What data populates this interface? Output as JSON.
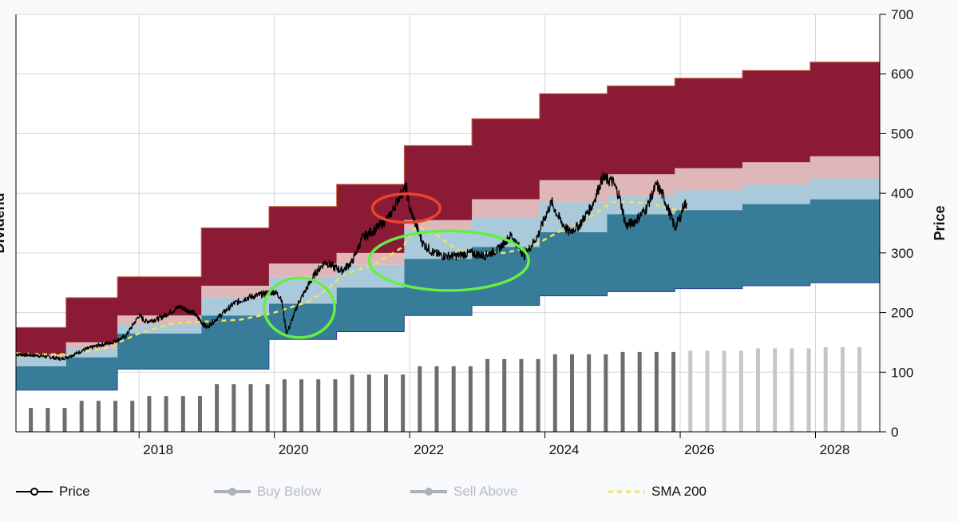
{
  "chart_data": {
    "type": "area",
    "title": "",
    "y_left_label": "Dividend",
    "y_right_label": "Price",
    "y_right_ticks": [
      "0",
      "100",
      "200",
      "300",
      "400",
      "500",
      "600",
      "700"
    ],
    "ylim": [
      0,
      700
    ],
    "x_ticks": [
      "2018",
      "2020",
      "2022",
      "2024",
      "2026",
      "2028"
    ],
    "xlim": [
      2016.18,
      2028.95
    ],
    "grid": true,
    "colors": {
      "overvalued_band": "#8b1a35",
      "sell_zone": "#e0b7b9",
      "fair_value": "#aac9da",
      "undervalued_band": "#377d99",
      "dividend_bar_actual": "#6d6d6d",
      "dividend_bar_projected": "#c6c6c6",
      "price_line": "#000000",
      "sma_line": "#f2e35a",
      "highlight_red": "#e8442f",
      "highlight_green": "#66ee44"
    },
    "bands": {
      "steps": [
        {
          "x0": 2016.18,
          "x1": 2016.92,
          "bottom": 70,
          "under_top": 110,
          "fair_top": 125,
          "sell_top": 130,
          "top": 175
        },
        {
          "x0": 2016.92,
          "x1": 2017.68,
          "bottom": 70,
          "under_top": 125,
          "fair_top": 140,
          "sell_top": 150,
          "top": 225
        },
        {
          "x0": 2017.68,
          "x1": 2018.92,
          "bottom": 105,
          "under_top": 165,
          "fair_top": 180,
          "sell_top": 195,
          "top": 260
        },
        {
          "x0": 2018.92,
          "x1": 2019.92,
          "bottom": 105,
          "under_top": 195,
          "fair_top": 225,
          "sell_top": 245,
          "top": 342
        },
        {
          "x0": 2019.92,
          "x1": 2020.92,
          "bottom": 155,
          "under_top": 215,
          "fair_top": 260,
          "sell_top": 282,
          "top": 378
        },
        {
          "x0": 2020.92,
          "x1": 2021.92,
          "bottom": 168,
          "under_top": 242,
          "fair_top": 280,
          "sell_top": 300,
          "top": 415
        },
        {
          "x0": 2021.92,
          "x1": 2022.92,
          "bottom": 195,
          "under_top": 290,
          "fair_top": 340,
          "sell_top": 355,
          "top": 480
        },
        {
          "x0": 2022.92,
          "x1": 2023.92,
          "bottom": 212,
          "under_top": 310,
          "fair_top": 360,
          "sell_top": 390,
          "top": 525
        },
        {
          "x0": 2023.92,
          "x1": 2024.92,
          "bottom": 228,
          "under_top": 335,
          "fair_top": 385,
          "sell_top": 422,
          "top": 567
        },
        {
          "x0": 2024.92,
          "x1": 2025.92,
          "bottom": 235,
          "under_top": 365,
          "fair_top": 395,
          "sell_top": 432,
          "top": 580
        },
        {
          "x0": 2025.92,
          "x1": 2026.92,
          "bottom": 240,
          "under_top": 372,
          "fair_top": 405,
          "sell_top": 442,
          "top": 593
        },
        {
          "x0": 2026.92,
          "x1": 2027.92,
          "bottom": 245,
          "under_top": 382,
          "fair_top": 415,
          "sell_top": 452,
          "top": 606
        },
        {
          "x0": 2027.92,
          "x1": 2028.95,
          "bottom": 250,
          "under_top": 390,
          "fair_top": 425,
          "sell_top": 462,
          "top": 620
        }
      ]
    },
    "dividend_bars": {
      "actual": [
        {
          "x": 2016.4,
          "v": 40
        },
        {
          "x": 2016.65,
          "v": 40
        },
        {
          "x": 2016.9,
          "v": 40
        },
        {
          "x": 2017.15,
          "v": 52
        },
        {
          "x": 2017.4,
          "v": 52
        },
        {
          "x": 2017.65,
          "v": 52
        },
        {
          "x": 2017.9,
          "v": 52
        },
        {
          "x": 2018.15,
          "v": 60
        },
        {
          "x": 2018.4,
          "v": 60
        },
        {
          "x": 2018.65,
          "v": 60
        },
        {
          "x": 2018.9,
          "v": 60
        },
        {
          "x": 2019.15,
          "v": 80
        },
        {
          "x": 2019.4,
          "v": 80
        },
        {
          "x": 2019.65,
          "v": 80
        },
        {
          "x": 2019.9,
          "v": 80
        },
        {
          "x": 2020.15,
          "v": 88
        },
        {
          "x": 2020.4,
          "v": 88
        },
        {
          "x": 2020.65,
          "v": 88
        },
        {
          "x": 2020.9,
          "v": 88
        },
        {
          "x": 2021.15,
          "v": 96
        },
        {
          "x": 2021.4,
          "v": 96
        },
        {
          "x": 2021.65,
          "v": 96
        },
        {
          "x": 2021.9,
          "v": 96
        },
        {
          "x": 2022.15,
          "v": 110
        },
        {
          "x": 2022.4,
          "v": 110
        },
        {
          "x": 2022.65,
          "v": 110
        },
        {
          "x": 2022.9,
          "v": 110
        },
        {
          "x": 2023.15,
          "v": 122
        },
        {
          "x": 2023.4,
          "v": 122
        },
        {
          "x": 2023.65,
          "v": 122
        },
        {
          "x": 2023.9,
          "v": 122
        },
        {
          "x": 2024.15,
          "v": 130
        },
        {
          "x": 2024.4,
          "v": 130
        },
        {
          "x": 2024.65,
          "v": 130
        },
        {
          "x": 2024.9,
          "v": 130
        },
        {
          "x": 2025.15,
          "v": 134
        },
        {
          "x": 2025.4,
          "v": 134
        },
        {
          "x": 2025.65,
          "v": 134
        },
        {
          "x": 2025.9,
          "v": 134
        }
      ],
      "projected": [
        {
          "x": 2026.15,
          "v": 136
        },
        {
          "x": 2026.4,
          "v": 136
        },
        {
          "x": 2026.65,
          "v": 136
        },
        {
          "x": 2026.9,
          "v": 136
        },
        {
          "x": 2027.15,
          "v": 140
        },
        {
          "x": 2027.4,
          "v": 140
        },
        {
          "x": 2027.65,
          "v": 140
        },
        {
          "x": 2027.9,
          "v": 140
        },
        {
          "x": 2028.15,
          "v": 142
        },
        {
          "x": 2028.4,
          "v": 142
        },
        {
          "x": 2028.65,
          "v": 142
        }
      ]
    },
    "series": [
      {
        "name": "Price",
        "points": [
          [
            2016.18,
            130
          ],
          [
            2016.5,
            128
          ],
          [
            2016.7,
            125
          ],
          [
            2016.85,
            122
          ],
          [
            2017.0,
            128
          ],
          [
            2017.2,
            138
          ],
          [
            2017.4,
            145
          ],
          [
            2017.6,
            150
          ],
          [
            2017.8,
            160
          ],
          [
            2018.0,
            195
          ],
          [
            2018.1,
            185
          ],
          [
            2018.3,
            190
          ],
          [
            2018.6,
            210
          ],
          [
            2018.8,
            200
          ],
          [
            2019.0,
            175
          ],
          [
            2019.2,
            195
          ],
          [
            2019.4,
            215
          ],
          [
            2019.6,
            225
          ],
          [
            2019.8,
            230
          ],
          [
            2020.0,
            235
          ],
          [
            2020.1,
            225
          ],
          [
            2020.18,
            165
          ],
          [
            2020.22,
            175
          ],
          [
            2020.35,
            215
          ],
          [
            2020.5,
            245
          ],
          [
            2020.6,
            265
          ],
          [
            2020.75,
            285
          ],
          [
            2020.9,
            275
          ],
          [
            2021.0,
            270
          ],
          [
            2021.15,
            285
          ],
          [
            2021.3,
            325
          ],
          [
            2021.5,
            340
          ],
          [
            2021.7,
            360
          ],
          [
            2021.85,
            395
          ],
          [
            2021.95,
            410
          ],
          [
            2022.0,
            375
          ],
          [
            2022.1,
            345
          ],
          [
            2022.2,
            315
          ],
          [
            2022.35,
            300
          ],
          [
            2022.5,
            295
          ],
          [
            2022.7,
            295
          ],
          [
            2022.9,
            300
          ],
          [
            2023.1,
            295
          ],
          [
            2023.3,
            305
          ],
          [
            2023.5,
            330
          ],
          [
            2023.7,
            295
          ],
          [
            2023.9,
            330
          ],
          [
            2024.0,
            360
          ],
          [
            2024.1,
            385
          ],
          [
            2024.2,
            360
          ],
          [
            2024.35,
            335
          ],
          [
            2024.5,
            345
          ],
          [
            2024.7,
            380
          ],
          [
            2024.85,
            425
          ],
          [
            2025.0,
            420
          ],
          [
            2025.1,
            395
          ],
          [
            2025.2,
            345
          ],
          [
            2025.35,
            355
          ],
          [
            2025.5,
            375
          ],
          [
            2025.65,
            415
          ],
          [
            2025.75,
            395
          ],
          [
            2025.85,
            365
          ],
          [
            2025.92,
            342
          ],
          [
            2026.0,
            360
          ],
          [
            2026.05,
            380
          ],
          [
            2026.1,
            383
          ]
        ]
      },
      {
        "name": "SMA 200",
        "points": [
          [
            2016.18,
            132
          ],
          [
            2016.6,
            130
          ],
          [
            2017.0,
            130
          ],
          [
            2017.5,
            140
          ],
          [
            2018.0,
            165
          ],
          [
            2018.5,
            182
          ],
          [
            2019.0,
            185
          ],
          [
            2019.5,
            188
          ],
          [
            2020.0,
            200
          ],
          [
            2020.5,
            218
          ],
          [
            2020.8,
            240
          ],
          [
            2021.0,
            262
          ],
          [
            2021.5,
            282
          ],
          [
            2021.9,
            310
          ],
          [
            2022.1,
            345
          ],
          [
            2022.4,
            330
          ],
          [
            2022.7,
            305
          ],
          [
            2023.0,
            300
          ],
          [
            2023.4,
            300
          ],
          [
            2023.8,
            310
          ],
          [
            2024.2,
            335
          ],
          [
            2024.6,
            355
          ],
          [
            2025.0,
            385
          ],
          [
            2025.3,
            385
          ],
          [
            2025.6,
            382
          ],
          [
            2026.0,
            370
          ],
          [
            2026.1,
            375
          ]
        ]
      }
    ],
    "highlights": [
      {
        "color": "red",
        "cx": 2021.95,
        "cy": 375,
        "rx": 0.5,
        "ry": 24
      },
      {
        "color": "green",
        "cx": 2020.37,
        "cy": 208,
        "rx": 0.52,
        "ry": 50
      },
      {
        "color": "green",
        "cx": 2022.58,
        "cy": 287,
        "rx": 1.18,
        "ry": 50
      }
    ],
    "legend": [
      {
        "label": "Price",
        "active": true,
        "style": "marker-line",
        "color": "#000000"
      },
      {
        "label": "Buy Below",
        "active": false,
        "style": "marker-line",
        "color": "#aeb2b7"
      },
      {
        "label": "Sell Above",
        "active": false,
        "style": "marker-line",
        "color": "#aeb2b7"
      },
      {
        "label": "SMA 200",
        "active": true,
        "style": "dashed",
        "color": "#f2e35a"
      }
    ]
  }
}
